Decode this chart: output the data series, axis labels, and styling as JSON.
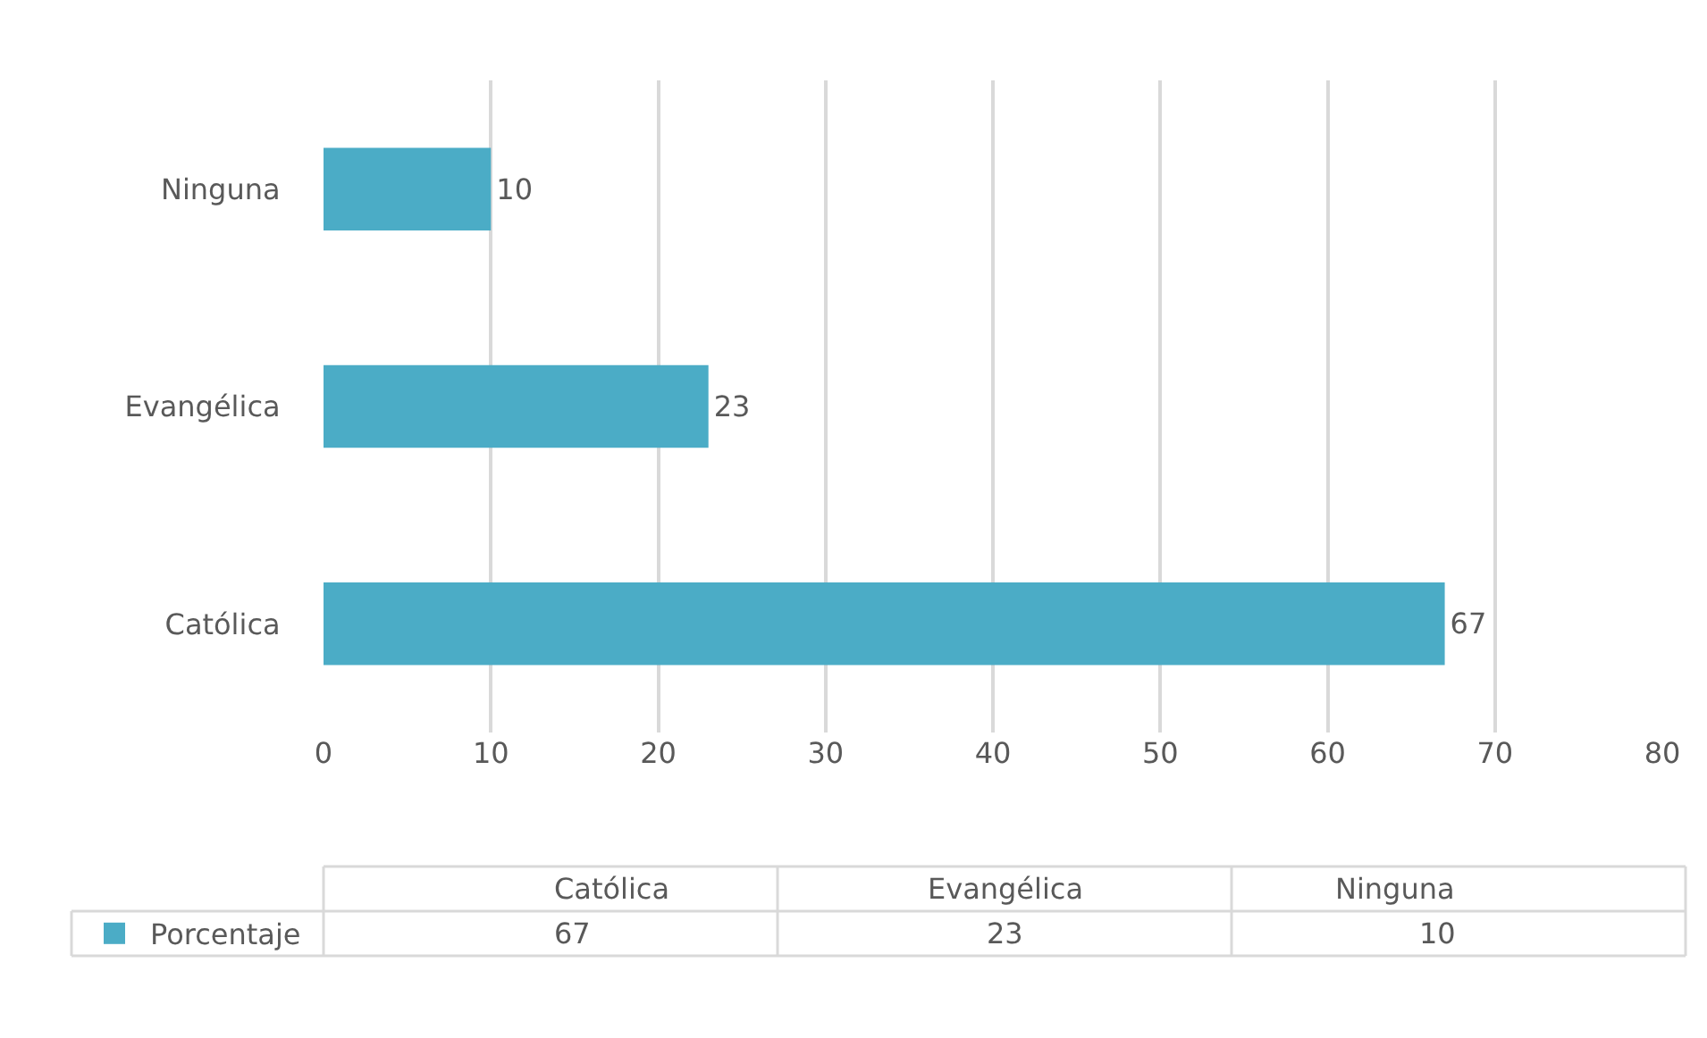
{
  "chart_data": {
    "type": "bar",
    "orientation": "horizontal",
    "categories": [
      "Ninguna",
      "Evangélica",
      "Católica"
    ],
    "series": [
      {
        "name": "Porcentaje",
        "color": "#4bacc6",
        "values": [
          10,
          23,
          67
        ]
      }
    ],
    "annotations": [
      "67",
      "23",
      "10"
    ],
    "xlim": [
      0,
      80
    ],
    "xticks": [
      0,
      10,
      20,
      30,
      40,
      50,
      60,
      70,
      80
    ],
    "grid": "x",
    "data_labels": true,
    "legend": "bottom"
  }
}
